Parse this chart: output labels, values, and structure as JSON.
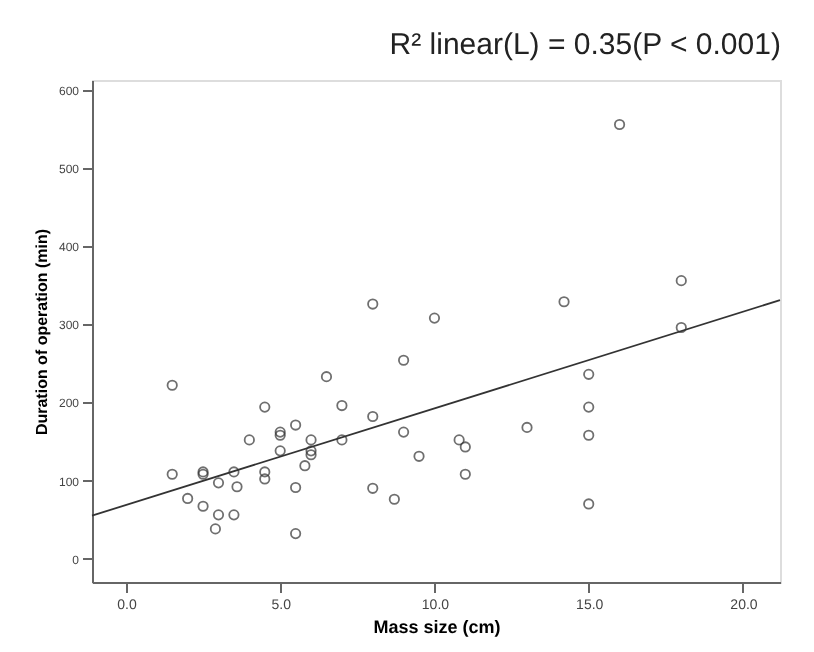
{
  "chart_data": {
    "type": "scatter",
    "title": "R² linear(L) = 0.35(P < 0.001)",
    "xlabel": "Mass size (cm)",
    "ylabel": "Duration of operation (min)",
    "xlim": [
      -1.1,
      21.2
    ],
    "ylim": [
      -30,
      613
    ],
    "xticks": [
      {
        "value": 0,
        "label": "0.0"
      },
      {
        "value": 5,
        "label": "5.0"
      },
      {
        "value": 10,
        "label": "10.0"
      },
      {
        "value": 15,
        "label": "15.0"
      },
      {
        "value": 20,
        "label": "20.0"
      }
    ],
    "yticks": [
      0,
      100,
      200,
      300,
      400,
      500,
      600
    ],
    "grid": false,
    "series": [
      {
        "color": "#333333",
        "marker": "circle",
        "x": [
          1.5,
          1.5,
          2.0,
          2.5,
          2.5,
          2.5,
          3.0,
          3.0,
          2.9,
          3.5,
          3.6,
          3.5,
          4.0,
          4.5,
          4.5,
          4.5,
          5.0,
          5.0,
          5.0,
          5.5,
          5.5,
          5.5,
          5.8,
          6.0,
          6.0,
          6.0,
          6.5,
          7.0,
          7.0,
          8.0,
          8.0,
          8.0,
          8.7,
          9.0,
          9.0,
          9.5,
          10.0,
          10.8,
          11.0,
          11.0,
          13.0,
          14.2,
          15.0,
          15.0,
          15.0,
          15.0,
          16.0,
          18.0,
          18.0
        ],
        "values": [
          222,
          108,
          77,
          111,
          108,
          67,
          97,
          56,
          38,
          111,
          92,
          56,
          152,
          194,
          111,
          102,
          162,
          158,
          138,
          171,
          91,
          32,
          119,
          152,
          138,
          133,
          233,
          196,
          152,
          326,
          182,
          90,
          76,
          254,
          162,
          131,
          308,
          152,
          143,
          108,
          168,
          329,
          236,
          194,
          158,
          70,
          556,
          356,
          296
        ]
      },
      {
        "type": "line",
        "color": "#333333",
        "marker": "none",
        "line_style": "solid",
        "x": [
          -1.1,
          21.2
        ],
        "values": [
          55,
          331
        ]
      }
    ]
  }
}
